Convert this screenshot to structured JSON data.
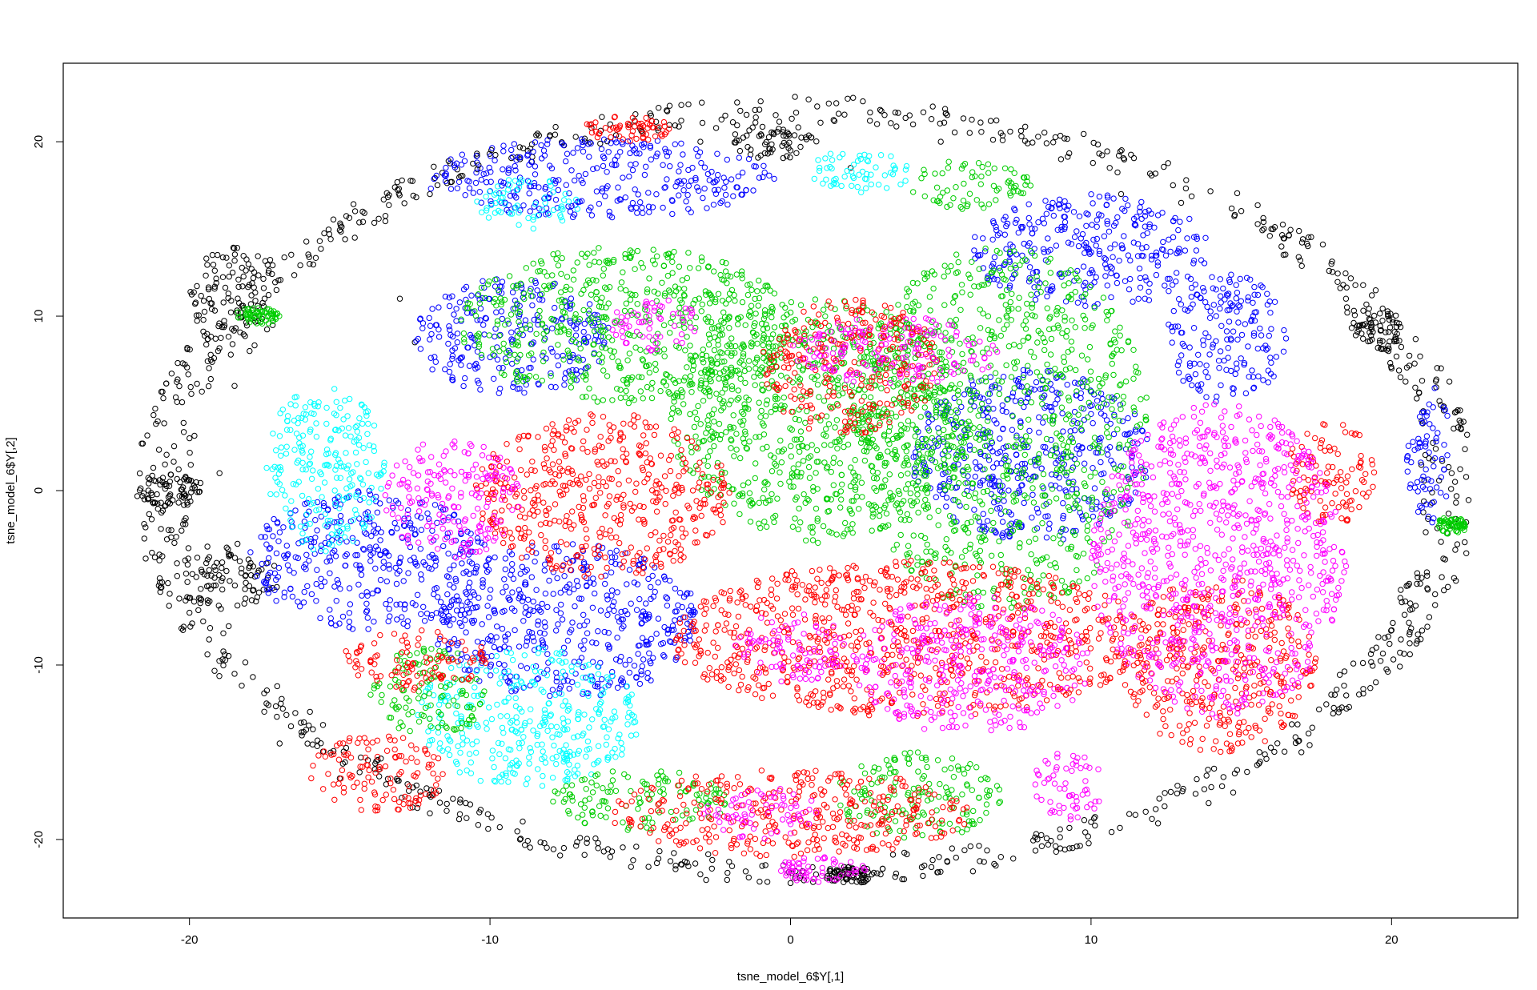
{
  "chart_data": {
    "type": "scatter",
    "title": "",
    "xlabel": "tsne_model_6$Y[,1]",
    "ylabel": "tsne_model_6$Y[,2]",
    "xlim": [
      -24.2,
      24.2
    ],
    "ylim": [
      -24.5,
      24.5
    ],
    "x_ticks": [
      -20,
      -10,
      0,
      10,
      20
    ],
    "y_ticks": [
      -20,
      -10,
      0,
      10,
      20
    ],
    "grid": false,
    "legend": "none",
    "marker": "open-circle",
    "series": [
      {
        "color": "#000000",
        "clusters": [
          {
            "x": [
              -21.5,
              -20,
              -18.5,
              -17,
              -15,
              -13,
              -11,
              -9,
              -7,
              -5,
              -3,
              -1,
              1,
              3,
              5,
              7,
              9,
              11,
              13,
              15,
              17,
              19,
              21,
              22
            ]
          },
          {
            "x": [
              -20,
              -17
            ],
            "y": [
              8,
              14
            ]
          },
          {
            "x": [
              -21.8,
              -19.5
            ],
            "y": [
              -1,
              1
            ]
          },
          {
            "x": [
              -20.5,
              -17
            ],
            "y": [
              -7,
              -3
            ]
          },
          {
            "x": [
              -2,
              1
            ],
            "y": [
              19,
              21
            ]
          },
          {
            "x": [
              1,
              3
            ],
            "y": [
              -22.5,
              -21.5
            ]
          },
          {
            "x": [
              18.6,
              20.4
            ],
            "y": [
              8,
              10.5
            ]
          }
        ],
        "points": [
          [
            -21.5,
            -0.5
          ],
          [
            -20.5,
            -3
          ],
          [
            -20,
            3
          ],
          [
            -19,
            1
          ],
          [
            -18.5,
            6
          ],
          [
            -18,
            8
          ],
          [
            -17.5,
            11
          ],
          [
            -16,
            13
          ],
          [
            -14.5,
            14.5
          ],
          [
            -13,
            11
          ],
          [
            -12.5,
            8.5
          ],
          [
            -12,
            17
          ],
          [
            -9,
            19
          ],
          [
            -6,
            21
          ],
          [
            -3,
            20
          ],
          [
            0,
            19.5
          ],
          [
            2,
            18.5
          ],
          [
            5,
            20
          ],
          [
            7,
            20.5
          ],
          [
            9,
            19
          ],
          [
            11,
            17
          ],
          [
            13,
            16.5
          ],
          [
            16,
            15
          ],
          [
            18,
            13
          ],
          [
            19,
            9
          ],
          [
            20,
            7
          ],
          [
            21,
            4
          ],
          [
            22,
            1
          ],
          [
            22,
            -2
          ],
          [
            21,
            -5
          ],
          [
            20,
            -8
          ],
          [
            18.5,
            -12.5
          ],
          [
            17,
            -15
          ],
          [
            14,
            -17
          ],
          [
            10,
            -19
          ],
          [
            7,
            -21
          ],
          [
            3,
            -22
          ],
          [
            0,
            -22.5
          ],
          [
            -3,
            -22
          ],
          [
            -6,
            -21
          ],
          [
            -9,
            -20
          ],
          [
            -12,
            -18.5
          ],
          [
            -15,
            -16.5
          ],
          [
            -17,
            -14.5
          ],
          [
            -18.5,
            -10.5
          ],
          [
            -20,
            -7
          ],
          [
            -21,
            -4
          ]
        ]
      },
      {
        "color": "#0000ff",
        "clusters": [
          {
            "x": [
              -12.2,
              -0.5
            ],
            "y": [
              15.6,
              20.2
            ]
          },
          {
            "x": [
              -12.5,
              -6
            ],
            "y": [
              5.5,
              12.2
            ]
          },
          {
            "x": [
              -18,
              -10
            ],
            "y": [
              -8,
              0
            ]
          },
          {
            "x": [
              -12,
              -3
            ],
            "y": [
              -12,
              -3
            ]
          },
          {
            "x": [
              6,
              14
            ],
            "y": [
              10.5,
              17
            ]
          },
          {
            "x": [
              12.5,
              16.5
            ],
            "y": [
              5,
              12.5
            ]
          },
          {
            "x": [
              4,
              12
            ],
            "y": [
              -3,
              7
            ]
          },
          {
            "x": [
              20.5,
              22
            ],
            "y": [
              -2,
              6
            ]
          }
        ]
      },
      {
        "color": "#00ffff",
        "clusters": [
          {
            "x": [
              -10.5,
              -7
            ],
            "y": [
              15,
              18
            ]
          },
          {
            "x": [
              -17.5,
              -13.5
            ],
            "y": [
              -3.5,
              6
            ]
          },
          {
            "x": [
              -12.5,
              -5
            ],
            "y": [
              -17,
              -9
            ]
          },
          {
            "x": [
              0.5,
              4
            ],
            "y": [
              17,
              19.5
            ]
          }
        ]
      },
      {
        "color": "#00cd00",
        "clusters": [
          {
            "x": [
              -11,
              0
            ],
            "y": [
              5,
              14
            ]
          },
          {
            "x": [
              -4,
              6
            ],
            "y": [
              -3,
              11
            ]
          },
          {
            "x": [
              2,
              12
            ],
            "y": [
              -7,
              14
            ]
          },
          {
            "x": [
              4,
              8
            ],
            "y": [
              16,
              19
            ]
          },
          {
            "x": [
              -14,
              -10
            ],
            "y": [
              -14,
              -9
            ]
          },
          {
            "x": [
              -8,
              -2
            ],
            "y": [
              -19.5,
              -16
            ]
          },
          {
            "x": [
              1.5,
              7
            ],
            "y": [
              -20,
              -15
            ]
          },
          {
            "x": [
              -18.5,
              -17
            ],
            "y": [
              9.5,
              10.5
            ]
          },
          {
            "x": [
              21.5,
              22.5
            ],
            "y": [
              -2.5,
              -1.5
            ]
          }
        ]
      },
      {
        "color": "#ff0000",
        "clusters": [
          {
            "x": [
              -10.5,
              -2
            ],
            "y": [
              -5,
              4.5
            ]
          },
          {
            "x": [
              -1,
              5
            ],
            "y": [
              3,
              11
            ]
          },
          {
            "x": [
              -4,
              12
            ],
            "y": [
              -13,
              -4
            ]
          },
          {
            "x": [
              11,
              17.5
            ],
            "y": [
              -15,
              -5
            ]
          },
          {
            "x": [
              16.5,
              19.5
            ],
            "y": [
              -2,
              4
            ]
          },
          {
            "x": [
              -15,
              -10
            ],
            "y": [
              -11.5,
              -8
            ]
          },
          {
            "x": [
              -6,
              6
            ],
            "y": [
              -21,
              -16
            ]
          },
          {
            "x": [
              -7,
              -4
            ],
            "y": [
              20,
              21.5
            ]
          },
          {
            "x": [
              -16,
              -11.5
            ],
            "y": [
              -18.5,
              -14
            ]
          }
        ]
      },
      {
        "color": "#ff00ff",
        "clusters": [
          {
            "x": [
              -13.5,
              -9
            ],
            "y": [
              -4,
              3
            ]
          },
          {
            "x": [
              -6,
              -3
            ],
            "y": [
              8,
              11
            ]
          },
          {
            "x": [
              0,
              7
            ],
            "y": [
              6,
              10
            ]
          },
          {
            "x": [
              10,
              18.5
            ],
            "y": [
              -13,
              5
            ]
          },
          {
            "x": [
              2,
              10
            ],
            "y": [
              -14,
              -6
            ]
          },
          {
            "x": [
              -2,
              2
            ],
            "y": [
              -11,
              -7
            ]
          },
          {
            "x": [
              -3,
              1
            ],
            "y": [
              -20,
              -17
            ]
          },
          {
            "x": [
              8,
              10.5
            ],
            "y": [
              -19,
              -15
            ]
          },
          {
            "x": [
              -0.5,
              2.5
            ],
            "y": [
              -22.5,
              -21
            ]
          }
        ]
      }
    ]
  }
}
